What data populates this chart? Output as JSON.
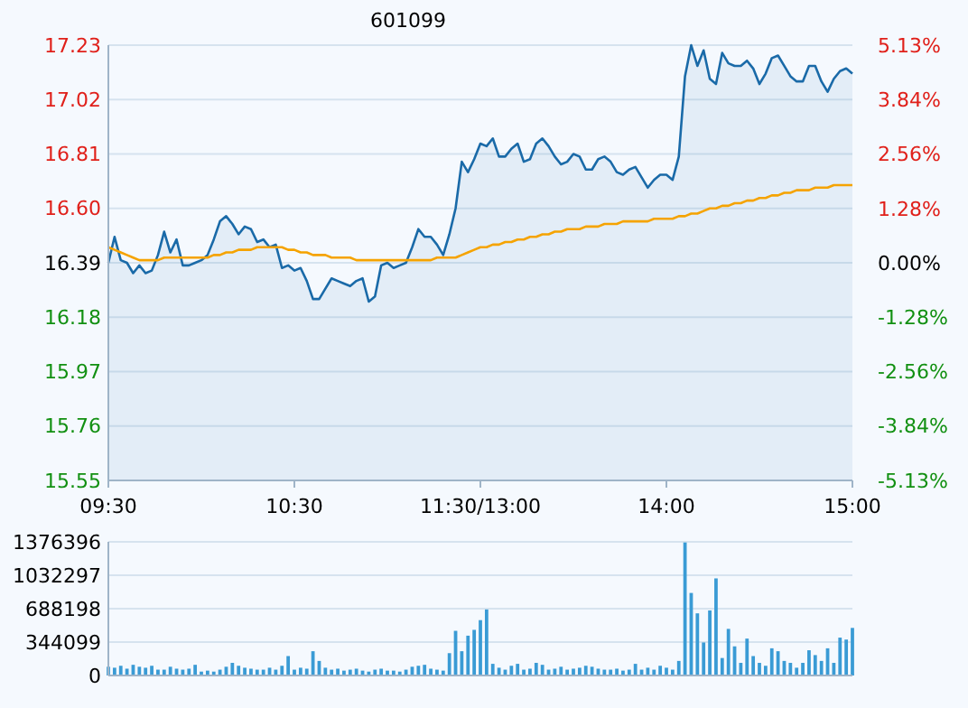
{
  "chart_data": [
    {
      "type": "area",
      "title": "601099",
      "grid": "y",
      "categories": [
        "09:30",
        null,
        null,
        null,
        null,
        null,
        null,
        null,
        null,
        null,
        null,
        null,
        null,
        null,
        null,
        null,
        null,
        null,
        null,
        null,
        null,
        null,
        null,
        null,
        null,
        null,
        null,
        null,
        null,
        null,
        "10:30",
        null,
        null,
        null,
        null,
        null,
        null,
        null,
        null,
        null,
        null,
        null,
        null,
        null,
        null,
        null,
        null,
        null,
        null,
        null,
        null,
        null,
        null,
        null,
        null,
        null,
        null,
        null,
        null,
        null,
        "11:30/13:00",
        null,
        null,
        null,
        null,
        null,
        null,
        null,
        null,
        null,
        null,
        null,
        null,
        null,
        null,
        null,
        null,
        null,
        null,
        null,
        null,
        null,
        null,
        null,
        null,
        null,
        null,
        null,
        null,
        null,
        "14:00",
        null,
        null,
        null,
        null,
        null,
        null,
        null,
        null,
        null,
        null,
        null,
        null,
        null,
        null,
        null,
        null,
        null,
        null,
        null,
        null,
        null,
        null,
        null,
        null,
        null,
        null,
        null,
        null,
        null,
        "15:00"
      ],
      "ylim": [
        15.55,
        17.23
      ],
      "yticks": [
        15.55,
        15.76,
        15.97,
        16.18,
        16.39,
        {
          "value": 16.6,
          "label": "16.60"
        },
        16.81,
        17.02,
        17.23
      ],
      "y2lim": [
        -5.13,
        5.13
      ],
      "y2ticks": [
        {
          "value": -5.13,
          "label": "-5.13%"
        },
        {
          "value": -3.84,
          "label": "-3.84%"
        },
        {
          "value": -2.56,
          "label": "-2.56%"
        },
        {
          "value": -1.28,
          "label": "-1.28%"
        },
        {
          "value": 0,
          "label": "0.00%"
        },
        {
          "value": 1.28,
          "label": "1.28%"
        },
        {
          "value": 2.56,
          "label": "2.56%"
        },
        {
          "value": 3.84,
          "label": "3.84%"
        },
        {
          "value": 5.13,
          "label": "5.13%"
        }
      ],
      "series": [
        {
          "color": "#1a6aa8",
          "values": [
            16.39,
            16.49,
            16.4,
            16.39,
            16.35,
            16.38,
            16.35,
            16.36,
            16.42,
            16.51,
            16.43,
            16.48,
            16.38,
            16.38,
            16.39,
            16.4,
            16.42,
            16.48,
            16.55,
            16.57,
            16.54,
            16.5,
            16.53,
            16.52,
            16.47,
            16.48,
            16.45,
            16.46,
            16.37,
            16.38,
            16.36,
            16.37,
            16.32,
            16.25,
            16.25,
            16.29,
            16.33,
            16.32,
            16.31,
            16.3,
            16.32,
            16.33,
            16.24,
            16.26,
            16.38,
            16.39,
            16.37,
            16.38,
            16.39,
            16.45,
            16.52,
            16.49,
            16.49,
            16.46,
            16.42,
            16.5,
            16.6,
            16.78,
            16.74,
            16.79,
            16.85,
            16.84,
            16.87,
            16.8,
            16.8,
            16.83,
            16.85,
            16.78,
            16.79,
            16.85,
            16.87,
            16.84,
            16.8,
            16.77,
            16.78,
            16.81,
            16.8,
            16.75,
            16.75,
            16.79,
            16.8,
            16.78,
            16.74,
            16.73,
            16.75,
            16.76,
            16.72,
            16.68,
            16.71,
            16.73,
            16.73,
            16.71,
            16.8,
            17.11,
            17.23,
            17.15,
            17.21,
            17.1,
            17.08,
            17.2,
            17.16,
            17.15,
            17.15,
            17.17,
            17.14,
            17.08,
            17.12,
            17.18,
            17.19,
            17.15,
            17.11,
            17.09,
            17.09,
            17.15,
            17.15,
            17.09,
            17.05,
            17.1,
            17.13,
            17.14,
            17.12
          ]
        },
        {
          "type": "line",
          "color": "#f5a300",
          "values": [
            16.45,
            16.44,
            16.43,
            16.42,
            16.41,
            16.4,
            16.4,
            16.4,
            16.4,
            16.41,
            16.41,
            16.41,
            16.41,
            16.41,
            16.41,
            16.41,
            16.41,
            16.42,
            16.42,
            16.43,
            16.43,
            16.44,
            16.44,
            16.44,
            16.45,
            16.45,
            16.45,
            16.45,
            16.45,
            16.44,
            16.44,
            16.43,
            16.43,
            16.42,
            16.42,
            16.42,
            16.41,
            16.41,
            16.41,
            16.41,
            16.4,
            16.4,
            16.4,
            16.4,
            16.4,
            16.4,
            16.4,
            16.4,
            16.4,
            16.4,
            16.4,
            16.4,
            16.4,
            16.41,
            16.41,
            16.41,
            16.41,
            16.42,
            16.43,
            16.44,
            16.45,
            16.45,
            16.46,
            16.46,
            16.47,
            16.47,
            16.48,
            16.48,
            16.49,
            16.49,
            16.5,
            16.5,
            16.51,
            16.51,
            16.52,
            16.52,
            16.52,
            16.53,
            16.53,
            16.53,
            16.54,
            16.54,
            16.54,
            16.55,
            16.55,
            16.55,
            16.55,
            16.55,
            16.56,
            16.56,
            16.56,
            16.56,
            16.57,
            16.57,
            16.58,
            16.58,
            16.59,
            16.6,
            16.6,
            16.61,
            16.61,
            16.62,
            16.62,
            16.63,
            16.63,
            16.64,
            16.64,
            16.65,
            16.65,
            16.66,
            16.66,
            16.67,
            16.67,
            16.67,
            16.68,
            16.68,
            16.68,
            16.69,
            16.69,
            16.69,
            16.69
          ]
        }
      ]
    },
    {
      "type": "bar",
      "grid": "y",
      "tick_labels": "y",
      "color": "#3a9bd5",
      "categories": [
        null,
        null,
        null,
        null,
        null,
        null,
        null,
        null,
        null,
        null,
        null,
        null,
        null,
        null,
        null,
        null,
        null,
        null,
        null,
        null,
        null,
        null,
        null,
        null,
        null,
        null,
        null,
        null,
        null,
        null,
        null,
        null,
        null,
        null,
        null,
        null,
        null,
        null,
        null,
        null,
        null,
        null,
        null,
        null,
        null,
        null,
        null,
        null,
        null,
        null,
        null,
        null,
        null,
        null,
        null,
        null,
        null,
        null,
        null,
        null,
        null,
        null,
        null,
        null,
        null,
        null,
        null,
        null,
        null,
        null,
        null,
        null,
        null,
        null,
        null,
        null,
        null,
        null,
        null,
        null,
        null,
        null,
        null,
        null,
        null,
        null,
        null,
        null,
        null,
        null,
        null,
        null,
        null,
        null,
        null,
        null,
        null,
        null,
        null,
        null,
        null,
        null,
        null,
        null,
        null,
        null,
        null,
        null,
        null,
        null,
        null,
        null,
        null,
        null,
        null,
        null,
        null,
        null,
        null,
        null,
        null
      ],
      "ylim": [
        0,
        1376396
      ],
      "yticks": [
        0,
        344099,
        688198,
        1032297,
        1376396
      ],
      "values": [
        90000,
        80000,
        100000,
        70000,
        110000,
        90000,
        80000,
        100000,
        60000,
        60000,
        90000,
        70000,
        60000,
        70000,
        110000,
        40000,
        50000,
        40000,
        60000,
        90000,
        130000,
        100000,
        80000,
        70000,
        60000,
        60000,
        80000,
        60000,
        100000,
        200000,
        60000,
        80000,
        70000,
        250000,
        150000,
        80000,
        60000,
        70000,
        50000,
        60000,
        70000,
        50000,
        40000,
        60000,
        70000,
        50000,
        50000,
        40000,
        60000,
        90000,
        100000,
        110000,
        70000,
        60000,
        50000,
        230000,
        460000,
        250000,
        410000,
        470000,
        570000,
        680000,
        120000,
        80000,
        60000,
        100000,
        120000,
        60000,
        70000,
        130000,
        110000,
        60000,
        70000,
        90000,
        60000,
        70000,
        80000,
        100000,
        90000,
        70000,
        60000,
        60000,
        70000,
        50000,
        60000,
        120000,
        60000,
        80000,
        60000,
        100000,
        80000,
        60000,
        150000,
        1370000,
        850000,
        640000,
        340000,
        670000,
        1000000,
        180000,
        480000,
        300000,
        130000,
        380000,
        200000,
        130000,
        100000,
        280000,
        250000,
        150000,
        130000,
        80000,
        130000,
        260000,
        210000,
        150000,
        280000,
        130000,
        390000,
        370000,
        490000
      ]
    }
  ]
}
